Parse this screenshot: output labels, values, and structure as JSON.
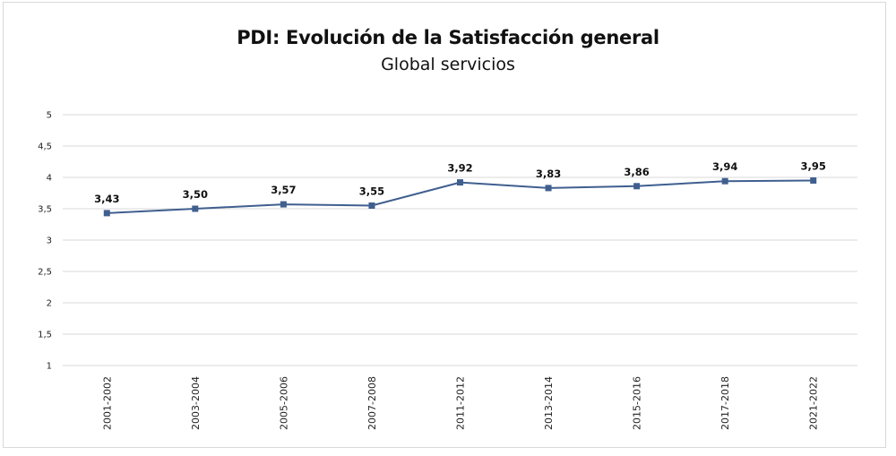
{
  "chart_data": {
    "type": "line",
    "title": "PDI: Evolución de la Satisfacción general",
    "subtitle": "Global servicios",
    "categories": [
      "2001-2002",
      "2003-2004",
      "2005-2006",
      "2007-2008",
      "2011-2012",
      "2013-2014",
      "2015-2016",
      "2017-2018",
      "2021-2022"
    ],
    "series": [
      {
        "values": [
          3.43,
          3.5,
          3.57,
          3.55,
          3.92,
          3.83,
          3.86,
          3.94,
          3.95
        ],
        "labels": [
          "3,43",
          "3,50",
          "3,57",
          "3,55",
          "3,92",
          "3,83",
          "3,86",
          "3,94",
          "3,95"
        ],
        "color": "#3f5f8f"
      }
    ],
    "yticks": [
      "1",
      "1,5",
      "2",
      "2,5",
      "3",
      "3,5",
      "4",
      "4,5",
      "5"
    ],
    "ylim": [
      1,
      5
    ],
    "xlabel": "",
    "ylabel": "",
    "grid": true,
    "gridline_color": "#d9d9d9",
    "marker": "square"
  }
}
